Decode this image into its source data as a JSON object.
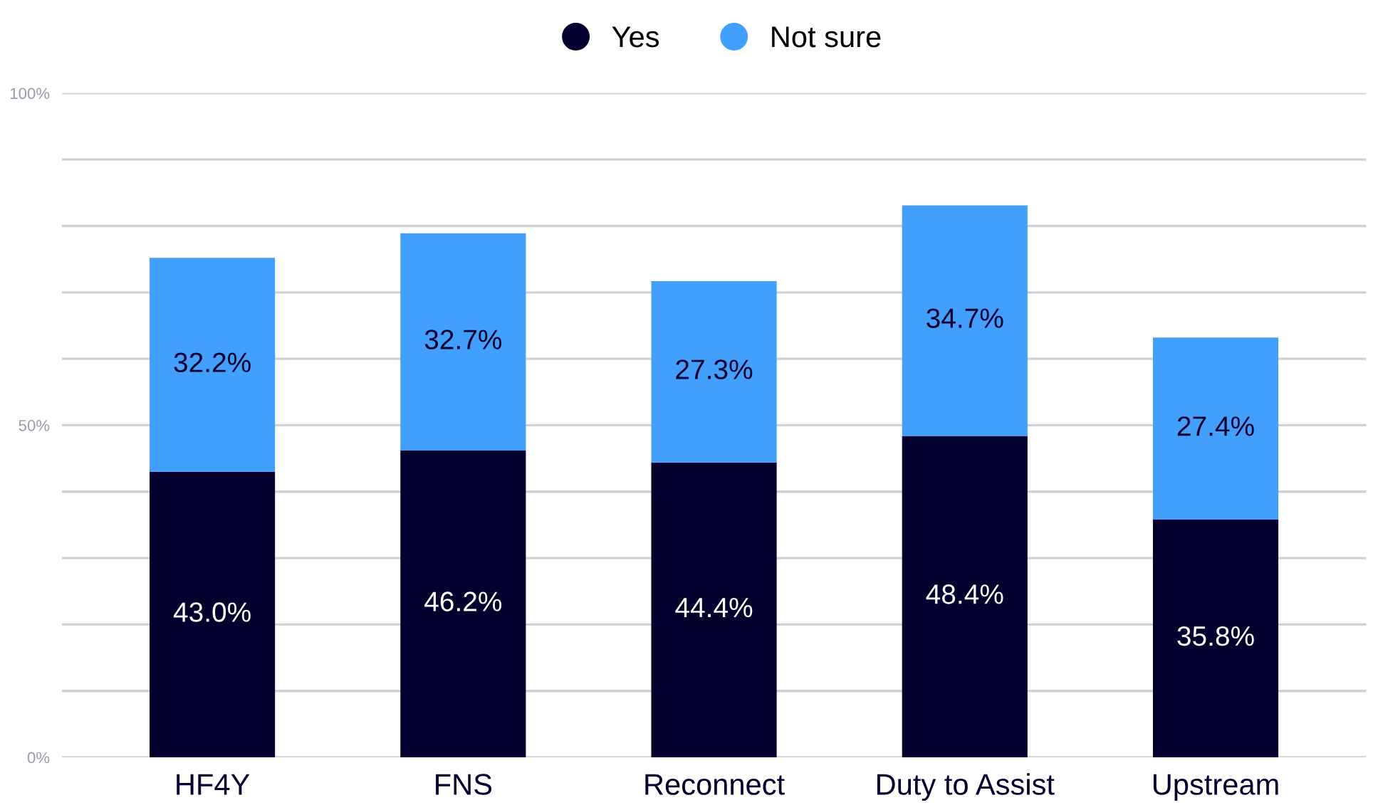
{
  "chart_data": {
    "type": "bar",
    "stacked": true,
    "categories": [
      "HF4Y",
      "FNS",
      "Reconnect",
      "Duty to Assist",
      "Upstream"
    ],
    "series": [
      {
        "name": "Yes",
        "color": "#03002e",
        "values": [
          43.0,
          46.2,
          44.4,
          48.4,
          35.8
        ],
        "value_labels": [
          "43.0%",
          "46.2%",
          "44.4%",
          "48.4%",
          "35.8%"
        ]
      },
      {
        "name": "Not sure",
        "color": "#429ffc",
        "values": [
          32.2,
          32.7,
          27.3,
          34.7,
          27.4
        ],
        "value_labels": [
          "32.2%",
          "32.7%",
          "27.3%",
          "34.7%",
          "27.4%"
        ]
      }
    ],
    "ylim": [
      0,
      100
    ],
    "yticks": [
      {
        "value": 0,
        "label": "0%"
      },
      {
        "value": 10,
        "label": null
      },
      {
        "value": 20,
        "label": null
      },
      {
        "value": 30,
        "label": null
      },
      {
        "value": 40,
        "label": null
      },
      {
        "value": 50,
        "label": "50%"
      },
      {
        "value": 60,
        "label": null
      },
      {
        "value": 70,
        "label": null
      },
      {
        "value": 80,
        "label": null
      },
      {
        "value": 90,
        "label": null
      },
      {
        "value": 100,
        "label": "100%"
      }
    ],
    "grid": "y",
    "legend": "top"
  }
}
